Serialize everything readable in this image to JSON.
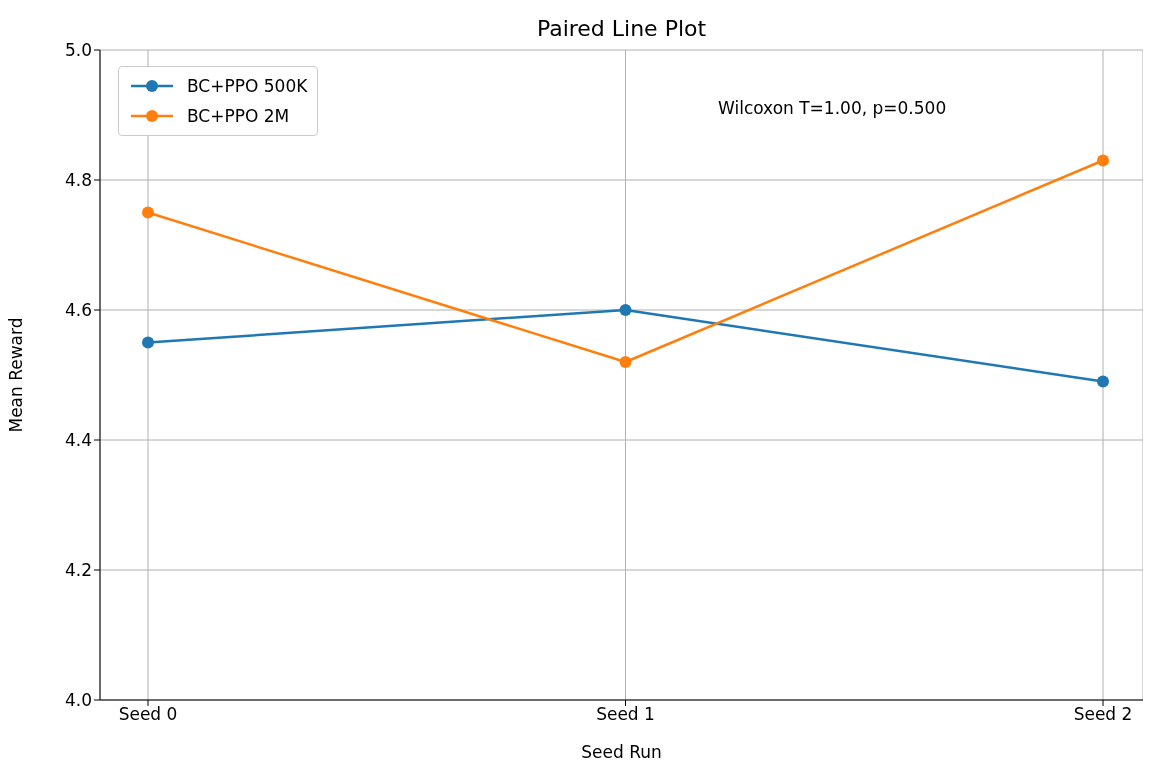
{
  "chart_data": {
    "type": "line",
    "title": "Paired Line Plot",
    "xlabel": "Seed Run",
    "ylabel": "Mean Reward",
    "categories": [
      "Seed 0",
      "Seed 1",
      "Seed 2"
    ],
    "series": [
      {
        "name": "BC+PPO 500K",
        "color": "#1f77b4",
        "values": [
          4.55,
          4.6,
          4.49
        ]
      },
      {
        "name": "BC+PPO 2M",
        "color": "#ff7f0e",
        "values": [
          4.75,
          4.52,
          4.83
        ]
      }
    ],
    "ylim": [
      4.0,
      5.0
    ],
    "yticks": [
      {
        "value": 4.0,
        "label": "4.0"
      },
      4.2,
      4.4,
      4.6,
      4.8,
      {
        "value": 5.0,
        "label": "5.0"
      }
    ],
    "grid": true,
    "legend": "top left",
    "marker": "circle",
    "line_style": "solid",
    "annotations": [
      "Wilcoxon T=1.00, p=0.500"
    ]
  }
}
